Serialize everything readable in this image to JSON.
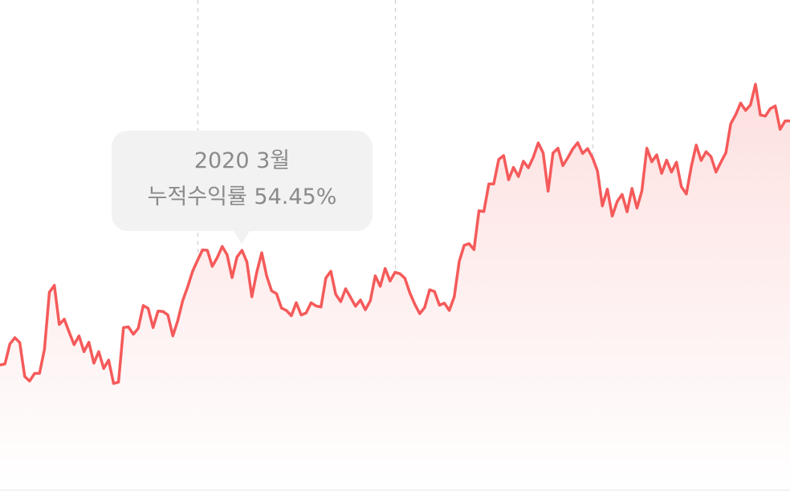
{
  "tooltip": {
    "date": "2020 3월",
    "value": "누적수익률 54.45%"
  },
  "colors": {
    "line": "#f55a5a",
    "fill_top": "#fde0e0",
    "fill_bottom": "#ffffff",
    "grid": "#cfcfcf",
    "tooltip_bg": "#f2f2f2",
    "tooltip_text": "#8a8a8a"
  },
  "chart_data": {
    "type": "area",
    "title": "",
    "xlabel": "",
    "ylabel": "",
    "grid": "vertical dashed lines",
    "x_divisions": 4,
    "highlight": {
      "label": "2020 3월",
      "value": 54.45
    },
    "series": [
      {
        "values": [
          20.6,
          20.9,
          26.6,
          28.4,
          27.0,
          17.3,
          16.0,
          18.2,
          18.2,
          25.1,
          41.4,
          43.4,
          32.2,
          33.7,
          30.0,
          26.4,
          28.9,
          24.4,
          27.1,
          21.1,
          24.4,
          19.6,
          22.0,
          15.3,
          15.7,
          31.3,
          31.5,
          29.4,
          31.1,
          37.6,
          36.8,
          31.3,
          36.0,
          35.9,
          34.9,
          28.9,
          33.3,
          39.0,
          42.9,
          47.4,
          50.5,
          53.5,
          53.4,
          48.8,
          51.3,
          54.5,
          52.1,
          45.6,
          51.5,
          53.4,
          50.1,
          40.1,
          47.1,
          52.7,
          46.1,
          41.8,
          41.0,
          36.9,
          36.2,
          34.7,
          38.4,
          34.9,
          35.5,
          38.4,
          37.5,
          37.2,
          45.5,
          47.4,
          40.8,
          38.7,
          42.4,
          39.9,
          37.4,
          39.2,
          36.4,
          39.0,
          46.1,
          43.1,
          48.2,
          44.6,
          47.1,
          46.7,
          45.4,
          41.2,
          38.0,
          35.3,
          37.0,
          42.1,
          41.6,
          37.7,
          38.3,
          36.2,
          40.1,
          50.2,
          54.8,
          55.3,
          53.6,
          64.7,
          64.5,
          72.4,
          72.4,
          79.4,
          80.5,
          73.6,
          77.1,
          74.5,
          78.9,
          77.0,
          80.0,
          84.1,
          81.3,
          70.3,
          81.2,
          82.6,
          77.6,
          79.9,
          82.4,
          84.2,
          81.1,
          82.5,
          79.9,
          76.1,
          66.1,
          70.9,
          63.2,
          67.4,
          69.4,
          64.4,
          71.1,
          65.5,
          70.4,
          82.6,
          78.7,
          80.7,
          75.4,
          79.2,
          75.8,
          78.6,
          71.6,
          69.5,
          77.3,
          83.5,
          79.1,
          81.6,
          80.2,
          75.8,
          78.6,
          81.3,
          89.6,
          92.2,
          95.5,
          93.4,
          95.0,
          100.9,
          92.1,
          91.8,
          93.9,
          94.7,
          88.0,
          90.4,
          90.4
        ]
      }
    ]
  }
}
